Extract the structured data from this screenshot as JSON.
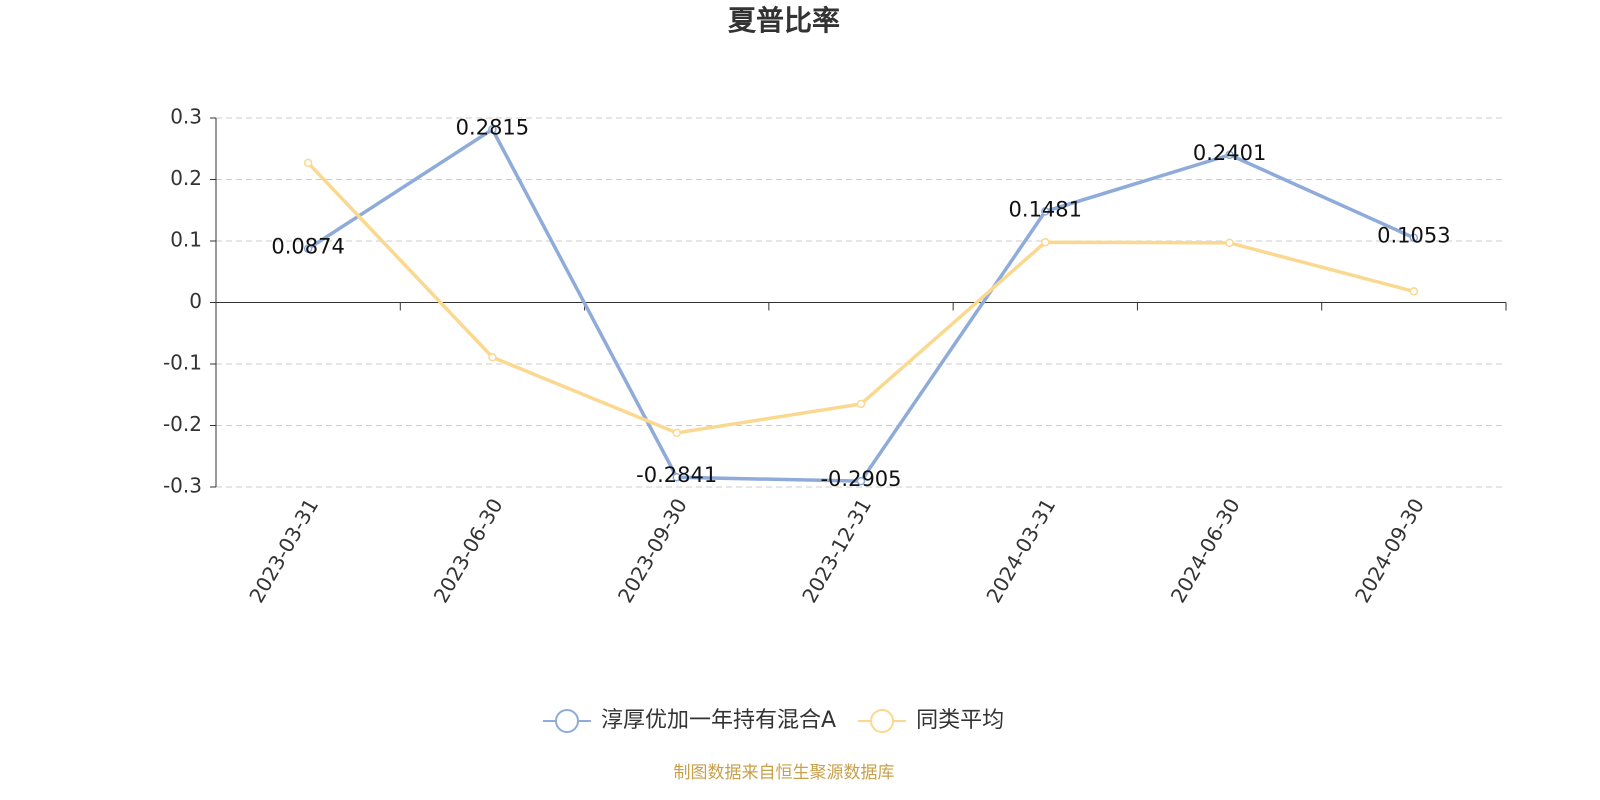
{
  "chart_data": {
    "type": "line",
    "title": "夏普比率",
    "categories": [
      "2023-03-31",
      "2023-06-30",
      "2023-09-30",
      "2023-12-31",
      "2024-03-31",
      "2024-06-30",
      "2024-09-30"
    ],
    "series": [
      {
        "name": "淳厚优加一年持有混合A",
        "color": "#8eabd9",
        "values": [
          0.0874,
          0.2815,
          -0.2841,
          -0.2905,
          0.1481,
          0.2401,
          0.1053
        ],
        "show_labels": true
      },
      {
        "name": "同类平均",
        "color": "#fbd88f",
        "values": [
          0.227,
          -0.089,
          -0.212,
          -0.165,
          0.098,
          0.097,
          0.018
        ],
        "show_labels": false
      }
    ],
    "ylim": [
      -0.3,
      0.3
    ],
    "yticks": [
      -0.3,
      -0.2,
      -0.1,
      0,
      0.1,
      0.2,
      0.3
    ],
    "grid": true,
    "legend": "bottom",
    "source": "制图数据来自恒生聚源数据库"
  }
}
